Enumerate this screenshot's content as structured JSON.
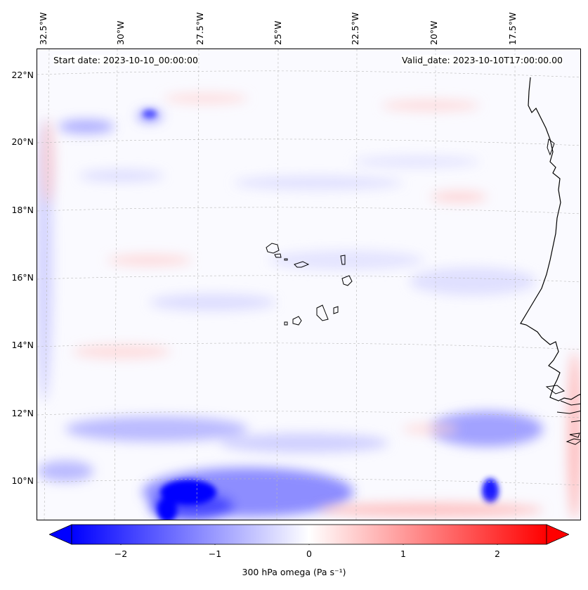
{
  "map": {
    "start_date": "Start date: 2023-10-10_00:00:00",
    "valid_date": "Valid_date: 2023-10-10T17:00:00.00",
    "lon_labels": [
      "32.5°W",
      "30°W",
      "27.5°W",
      "25°W",
      "22.5°W",
      "20°W",
      "17.5°W"
    ],
    "lat_labels": [
      "22°N",
      "20°N",
      "18°N",
      "16°N",
      "14°N",
      "12°N",
      "10°N"
    ],
    "colors": {
      "negative": "#0000ff",
      "positive": "#ff0000",
      "neutral": "#ffffff",
      "coast": "#000000",
      "grid": "#b0b0b0"
    }
  },
  "colorbar": {
    "label": "300 hPa omega (Pa s⁻¹)",
    "ticks": [
      "−2",
      "−1",
      "0",
      "1",
      "2"
    ],
    "range": [
      -2.75,
      2.75
    ]
  }
}
